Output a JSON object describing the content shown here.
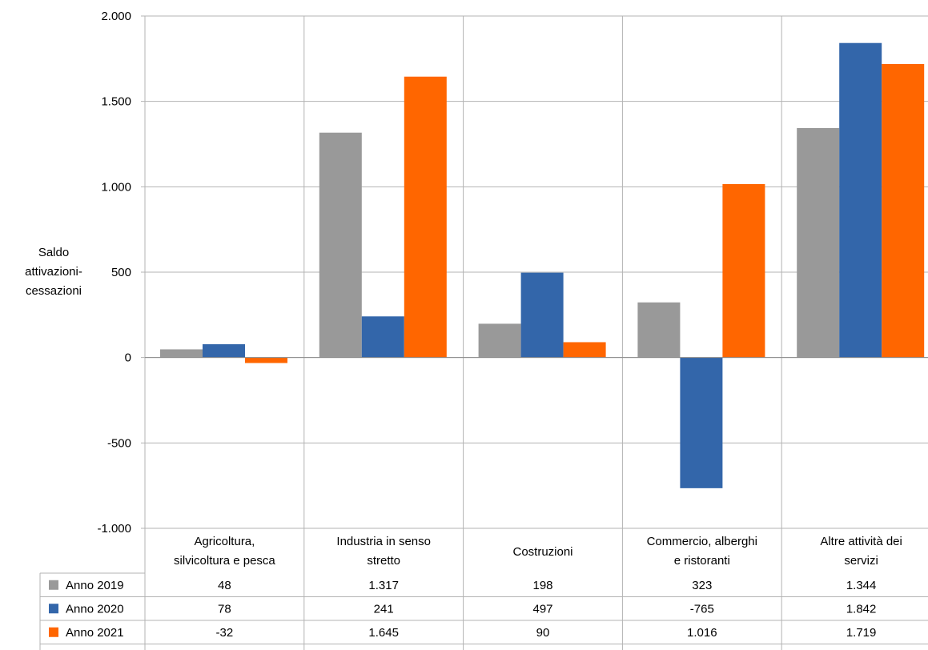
{
  "chart_data": {
    "type": "bar",
    "title": "",
    "ylabel": [
      "Saldo",
      "attivazioni-",
      "cessazioni"
    ],
    "ylim": [
      -1000,
      2000
    ],
    "yticks": [
      -1000,
      -500,
      0,
      500,
      1000,
      1500,
      2000
    ],
    "ytick_labels": [
      "-1.000",
      "-500",
      "0",
      "500",
      "1.000",
      "1.500",
      "2.000"
    ],
    "categories": [
      [
        "Agricoltura,",
        "silvicoltura e pesca"
      ],
      [
        "Industria in senso",
        "stretto"
      ],
      [
        "Costruzioni"
      ],
      [
        "Commercio, alberghi",
        "e ristoranti"
      ],
      [
        "Altre attività dei",
        "servizi"
      ]
    ],
    "series": [
      {
        "name": "Anno 2019",
        "color": "#999999",
        "values": [
          48,
          1317,
          198,
          323,
          1344
        ],
        "labels": [
          "48",
          "1.317",
          "198",
          "323",
          "1.344"
        ]
      },
      {
        "name": "Anno 2020",
        "color": "#3366aa",
        "values": [
          78,
          241,
          497,
          -765,
          1842
        ],
        "labels": [
          "78",
          "241",
          "497",
          "-765",
          "1.842"
        ]
      },
      {
        "name": "Anno 2021",
        "color": "#ff6600",
        "values": [
          -32,
          1645,
          90,
          1016,
          1719
        ],
        "labels": [
          "-32",
          "1.645",
          "90",
          "1.016",
          "1.719"
        ]
      }
    ],
    "grid": true,
    "legend": "data table below chart"
  }
}
